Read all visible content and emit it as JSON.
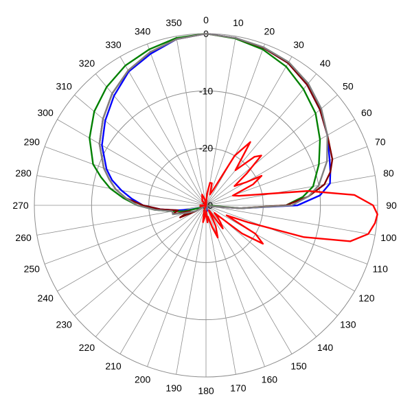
{
  "chart_data": {
    "type": "polar-line",
    "title": "",
    "r_unit": "dB",
    "r_range": [
      -30,
      0
    ],
    "r_ticks": [
      0,
      -10,
      -20,
      -30
    ],
    "r_tick_labels": [
      "0",
      "-10",
      "-20",
      "-30"
    ],
    "theta_zero": "top",
    "theta_direction": "clockwise",
    "theta_ticks": [
      0,
      10,
      20,
      30,
      40,
      50,
      60,
      70,
      80,
      90,
      100,
      110,
      120,
      130,
      140,
      150,
      160,
      170,
      180,
      190,
      200,
      210,
      220,
      230,
      240,
      250,
      260,
      270,
      280,
      290,
      300,
      310,
      320,
      330,
      340,
      350
    ],
    "theta_tick_labels": [
      "0",
      "10",
      "20",
      "30",
      "40",
      "50",
      "60",
      "70",
      "80",
      "90",
      "100",
      "110",
      "120",
      "130",
      "140",
      "150",
      "160",
      "170",
      "180",
      "190",
      "200",
      "210",
      "220",
      "230",
      "240",
      "250",
      "260",
      "270",
      "280",
      "290",
      "300",
      "310",
      "320",
      "330",
      "340",
      "350"
    ],
    "grid": true,
    "legend": "none",
    "series": [
      {
        "color": "#0000ff",
        "points": [
          [
            0,
            0
          ],
          [
            10,
            -0.3
          ],
          [
            20,
            -0.7
          ],
          [
            30,
            -1.3
          ],
          [
            40,
            -2.5
          ],
          [
            50,
            -4
          ],
          [
            60,
            -5.5
          ],
          [
            70,
            -7
          ],
          [
            75,
            -7.5
          ],
          [
            80,
            -8
          ],
          [
            85,
            -10
          ],
          [
            90,
            -14
          ],
          [
            95,
            -24
          ],
          [
            100,
            -29
          ],
          [
            110,
            -30
          ],
          [
            130,
            -30
          ],
          [
            150,
            -30
          ],
          [
            170,
            -29
          ],
          [
            180,
            -29
          ],
          [
            190,
            -30
          ],
          [
            230,
            -30
          ],
          [
            245,
            -29
          ],
          [
            255,
            -27
          ],
          [
            260,
            -25
          ],
          [
            265,
            -22
          ],
          [
            270,
            -19
          ],
          [
            275,
            -17
          ],
          [
            280,
            -15
          ],
          [
            285,
            -13
          ],
          [
            290,
            -11.5
          ],
          [
            300,
            -9
          ],
          [
            310,
            -7
          ],
          [
            320,
            -5
          ],
          [
            330,
            -3
          ],
          [
            340,
            -1.8
          ],
          [
            350,
            -0.5
          ],
          [
            360,
            0
          ]
        ]
      },
      {
        "color": "#008000",
        "points": [
          [
            0,
            0
          ],
          [
            10,
            -0.4
          ],
          [
            20,
            -1
          ],
          [
            30,
            -2
          ],
          [
            40,
            -3.5
          ],
          [
            50,
            -5
          ],
          [
            60,
            -7
          ],
          [
            70,
            -9
          ],
          [
            80,
            -11
          ],
          [
            85,
            -13
          ],
          [
            90,
            -16
          ],
          [
            95,
            -24
          ],
          [
            100,
            -30
          ],
          [
            130,
            -30
          ],
          [
            170,
            -30
          ],
          [
            180,
            -29
          ],
          [
            190,
            -30
          ],
          [
            230,
            -30
          ],
          [
            245,
            -29
          ],
          [
            255,
            -26
          ],
          [
            260,
            -24
          ],
          [
            265,
            -21
          ],
          [
            270,
            -18
          ],
          [
            275,
            -15.5
          ],
          [
            280,
            -13
          ],
          [
            285,
            -11
          ],
          [
            290,
            -9
          ],
          [
            300,
            -6.5
          ],
          [
            310,
            -4.5
          ],
          [
            320,
            -3
          ],
          [
            330,
            -1.8
          ],
          [
            340,
            -1
          ],
          [
            350,
            -0.3
          ],
          [
            360,
            0
          ]
        ]
      },
      {
        "color": "#800000",
        "points": [
          [
            0,
            0
          ],
          [
            10,
            -0.3
          ],
          [
            20,
            -0.7
          ],
          [
            30,
            -1.3
          ],
          [
            40,
            -2.5
          ],
          [
            50,
            -4
          ],
          [
            60,
            -5.5
          ],
          [
            70,
            -6.5
          ],
          [
            75,
            -7.5
          ],
          [
            80,
            -9
          ],
          [
            85,
            -12
          ],
          [
            90,
            -16
          ],
          [
            95,
            -24
          ],
          [
            100,
            -29
          ],
          [
            110,
            -30
          ],
          [
            130,
            -30
          ],
          [
            170,
            -30
          ],
          [
            180,
            -29
          ],
          [
            190,
            -30
          ],
          [
            230,
            -30
          ],
          [
            240,
            -28
          ],
          [
            245,
            -25
          ],
          [
            250,
            -27
          ],
          [
            255,
            -24
          ],
          [
            260,
            -25
          ],
          [
            265,
            -22
          ],
          [
            270,
            -19
          ],
          [
            275,
            -16
          ],
          [
            280,
            -14
          ],
          [
            285,
            -12.5
          ],
          [
            290,
            -11
          ],
          [
            300,
            -8.5
          ],
          [
            310,
            -6.5
          ],
          [
            320,
            -4.5
          ],
          [
            330,
            -2.8
          ],
          [
            340,
            -1.5
          ],
          [
            350,
            -0.5
          ],
          [
            360,
            0
          ]
        ]
      },
      {
        "color": "#808080",
        "points": [
          [
            0,
            0
          ],
          [
            10,
            -0.3
          ],
          [
            20,
            -0.6
          ],
          [
            30,
            -1.1
          ],
          [
            40,
            -2.2
          ],
          [
            50,
            -3.7
          ],
          [
            60,
            -5.5
          ],
          [
            70,
            -7.5
          ],
          [
            80,
            -10
          ],
          [
            85,
            -12
          ],
          [
            90,
            -15
          ],
          [
            95,
            -24
          ],
          [
            100,
            -29
          ],
          [
            110,
            -30
          ],
          [
            130,
            -30
          ],
          [
            170,
            -30
          ],
          [
            180,
            -29
          ],
          [
            190,
            -30
          ],
          [
            230,
            -30
          ],
          [
            240,
            -28
          ],
          [
            250,
            -26
          ],
          [
            255,
            -24
          ],
          [
            260,
            -24
          ],
          [
            265,
            -21
          ],
          [
            270,
            -18
          ],
          [
            275,
            -16
          ],
          [
            280,
            -14
          ],
          [
            285,
            -12.5
          ],
          [
            290,
            -11
          ],
          [
            300,
            -8.5
          ],
          [
            310,
            -6.5
          ],
          [
            320,
            -4.5
          ],
          [
            330,
            -2.8
          ],
          [
            340,
            -1.5
          ],
          [
            350,
            -0.5
          ],
          [
            360,
            0
          ]
        ]
      },
      {
        "color": "#ff0000",
        "points": [
          [
            0,
            -30
          ],
          [
            5,
            -28
          ],
          [
            10,
            -26
          ],
          [
            15,
            -26
          ],
          [
            20,
            -28
          ],
          [
            25,
            -27
          ],
          [
            30,
            -20
          ],
          [
            35,
            -16.5
          ],
          [
            40,
            -22
          ],
          [
            45,
            -18
          ],
          [
            48,
            -17
          ],
          [
            52,
            -21
          ],
          [
            56,
            -24
          ],
          [
            60,
            -22
          ],
          [
            62,
            -19
          ],
          [
            66,
            -21
          ],
          [
            70,
            -25
          ],
          [
            74,
            -24
          ],
          [
            78,
            -21
          ],
          [
            82,
            -12
          ],
          [
            86,
            -4
          ],
          [
            90,
            -0.8
          ],
          [
            93,
            0
          ],
          [
            96,
            -0.3
          ],
          [
            100,
            -1.2
          ],
          [
            104,
            -4
          ],
          [
            108,
            -12
          ],
          [
            112,
            -22
          ],
          [
            116,
            -26
          ],
          [
            120,
            -20
          ],
          [
            124,
            -18
          ],
          [
            128,
            -22
          ],
          [
            132,
            -28
          ],
          [
            136,
            -27
          ],
          [
            140,
            -26
          ],
          [
            144,
            -25
          ],
          [
            150,
            -29
          ],
          [
            155,
            -26
          ],
          [
            160,
            -24
          ],
          [
            164,
            -26
          ],
          [
            170,
            -28
          ],
          [
            175,
            -27
          ],
          [
            180,
            -29
          ],
          [
            185,
            -28
          ],
          [
            190,
            -27
          ],
          [
            200,
            -29
          ],
          [
            210,
            -30
          ],
          [
            230,
            -30
          ],
          [
            260,
            -29
          ],
          [
            270,
            -29
          ],
          [
            280,
            -30
          ],
          [
            300,
            -30
          ],
          [
            320,
            -29
          ],
          [
            340,
            -28
          ],
          [
            350,
            -29
          ],
          [
            360,
            -30
          ]
        ]
      }
    ]
  }
}
